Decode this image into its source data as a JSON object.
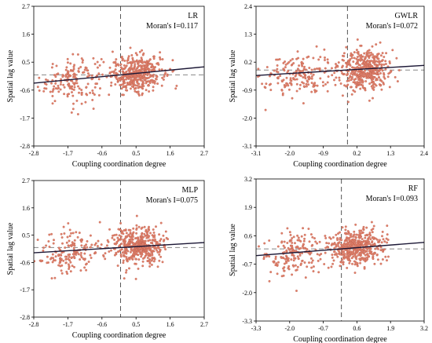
{
  "chart_data": [
    {
      "type": "scatter",
      "title": "LR",
      "annotation": "Moran's I=0.117",
      "xlabel": "Coupling coordination degree",
      "ylabel": "Spatial lag value",
      "xlim": [
        -2.8,
        2.7
      ],
      "ylim": [
        -2.8,
        2.7
      ],
      "xticks": [
        "-2.8",
        "-1.7",
        "-0.6",
        "0.5",
        "1.6",
        "2.7"
      ],
      "yticks": [
        "-2.8",
        "-1.7",
        "-0.6",
        "0.5",
        "1.6",
        "2.7"
      ],
      "x_ref": 0.0,
      "y_ref": 0.0,
      "slope": 0.117,
      "intercept": 0.0,
      "clusters": [
        {
          "cx": -1.6,
          "cy": -0.2,
          "sx": 0.5,
          "sy": 0.45,
          "n": 170
        },
        {
          "cx": 0.55,
          "cy": 0.05,
          "sx": 0.42,
          "sy": 0.35,
          "n": 430
        }
      ],
      "point_color": "#e0826b",
      "line_color": "#1c1836"
    },
    {
      "type": "scatter",
      "title": "GWLR",
      "annotation": "Moran's I=0.072",
      "xlabel": "Coupling coordination degree",
      "ylabel": "Spatial lag value",
      "xlim": [
        -3.1,
        2.6
      ],
      "ylim": [
        -3.1,
        2.6
      ],
      "xticks": [
        "-3.1",
        "-2.0",
        "-0.9",
        "0.2",
        "1.3",
        "2.4"
      ],
      "yticks": [
        "-3.1",
        "-2.0",
        "-0.9",
        "0.2",
        "1.3",
        "2.4"
      ],
      "x_ref": 0.0,
      "y_ref": 0.0,
      "slope": 0.072,
      "intercept": 0.0,
      "clusters": [
        {
          "cx": -1.7,
          "cy": -0.2,
          "sx": 0.6,
          "sy": 0.45,
          "n": 180
        },
        {
          "cx": 0.55,
          "cy": 0.0,
          "sx": 0.45,
          "sy": 0.4,
          "n": 430
        }
      ],
      "point_color": "#e0826b",
      "line_color": "#1c1836"
    },
    {
      "type": "scatter",
      "title": "MLP",
      "annotation": "Moran's I=0.075",
      "xlabel": "Coupling coordination degree",
      "ylabel": "Spatial lag value",
      "xlim": [
        -2.8,
        2.7
      ],
      "ylim": [
        -2.8,
        2.7
      ],
      "xticks": [
        "-2.8",
        "-1.7",
        "-0.6",
        "0.5",
        "1.6",
        "2.7"
      ],
      "yticks": [
        "-2.8",
        "-1.7",
        "-0.6",
        "0.5",
        "1.6",
        "2.7"
      ],
      "x_ref": 0.0,
      "y_ref": 0.0,
      "slope": 0.075,
      "intercept": 0.0,
      "clusters": [
        {
          "cx": -1.6,
          "cy": -0.2,
          "sx": 0.5,
          "sy": 0.45,
          "n": 170
        },
        {
          "cx": 0.55,
          "cy": 0.05,
          "sx": 0.42,
          "sy": 0.38,
          "n": 430
        }
      ],
      "point_color": "#e0826b",
      "line_color": "#1c1836"
    },
    {
      "type": "scatter",
      "title": "RF",
      "annotation": "Moran's I=0.093",
      "xlabel": "Coupling coordination degree",
      "ylabel": "Spatial lag value",
      "xlim": [
        -3.3,
        3.2
      ],
      "ylim": [
        -3.3,
        3.2
      ],
      "xticks": [
        "-3.3",
        "-2.0",
        "-0.7",
        "0.6",
        "1.9",
        "3.2"
      ],
      "yticks": [
        "-3.3",
        "-2.0",
        "-0.7",
        "0.6",
        "1.9",
        "3.2"
      ],
      "x_ref": 0.0,
      "y_ref": 0.0,
      "slope": 0.093,
      "intercept": 0.0,
      "clusters": [
        {
          "cx": -1.8,
          "cy": -0.25,
          "sx": 0.6,
          "sy": 0.5,
          "n": 180
        },
        {
          "cx": 0.6,
          "cy": 0.05,
          "sx": 0.5,
          "sy": 0.42,
          "n": 430
        }
      ],
      "point_color": "#e0826b",
      "line_color": "#1c1836"
    }
  ]
}
